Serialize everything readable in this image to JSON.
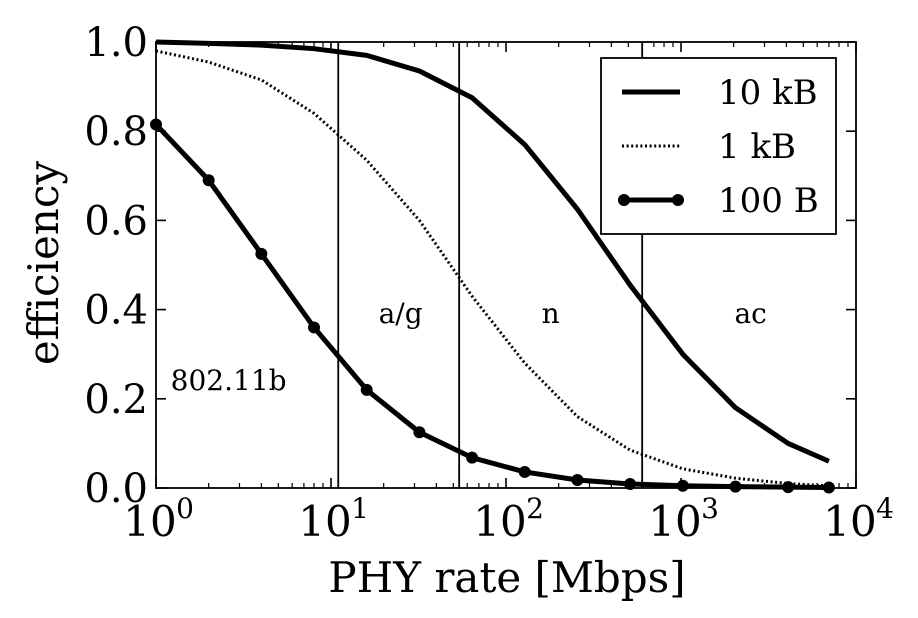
{
  "chart_data": {
    "type": "line",
    "title": "",
    "xlabel": "PHY rate [Mbps]",
    "ylabel": "efficiency",
    "xscale": "log",
    "xlim": [
      1,
      10000
    ],
    "ylim": [
      0,
      1.0
    ],
    "grid": false,
    "legend_position": "top-right",
    "x_tick_labels": [
      {
        "base": "10",
        "exp": "0"
      },
      {
        "base": "10",
        "exp": "1"
      },
      {
        "base": "10",
        "exp": "2"
      },
      {
        "base": "10",
        "exp": "3"
      },
      {
        "base": "10",
        "exp": "4"
      }
    ],
    "y_tick_labels": [
      "0.0",
      "0.2",
      "0.4",
      "0.6",
      "0.8",
      "1.0"
    ],
    "region_boundaries": [
      11,
      54,
      600
    ],
    "regions": [
      {
        "label": "802.11b",
        "x": 2.6,
        "y": 0.22
      },
      {
        "label": "a/g",
        "x": 25,
        "y": 0.37
      },
      {
        "label": "n",
        "x": 180,
        "y": 0.37
      },
      {
        "label": "ac",
        "x": 2500,
        "y": 0.37
      }
    ],
    "series": [
      {
        "name": "10 kB",
        "style": "solid",
        "x": [
          1,
          2,
          4,
          8,
          16,
          32,
          64,
          128,
          256,
          512,
          1024,
          2048,
          4096,
          7000
        ],
        "y": [
          1.0,
          0.997,
          0.993,
          0.985,
          0.97,
          0.935,
          0.875,
          0.77,
          0.625,
          0.455,
          0.3,
          0.18,
          0.1,
          0.06
        ]
      },
      {
        "name": "1 kB",
        "style": "dotted",
        "x": [
          1,
          2,
          4,
          8,
          16,
          32,
          64,
          128,
          256,
          512,
          1024,
          2048,
          4096,
          7000
        ],
        "y": [
          0.98,
          0.955,
          0.915,
          0.84,
          0.735,
          0.6,
          0.43,
          0.28,
          0.16,
          0.085,
          0.043,
          0.022,
          0.01,
          0.005
        ]
      },
      {
        "name": "100 B",
        "style": "solid-marker",
        "x": [
          1,
          2,
          4,
          8,
          16,
          32,
          64,
          128,
          256,
          512,
          1024,
          2048,
          4096,
          7000
        ],
        "y": [
          0.815,
          0.69,
          0.525,
          0.36,
          0.22,
          0.125,
          0.068,
          0.036,
          0.018,
          0.009,
          0.005,
          0.003,
          0.002,
          0.001
        ]
      }
    ]
  }
}
